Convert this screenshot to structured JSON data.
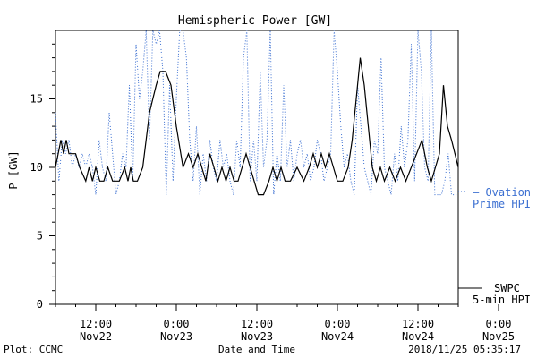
{
  "chart_data": {
    "type": "line",
    "title": "Hemispheric Power [GW]",
    "xlabel": "Date and Time",
    "ylabel": "P [GW]",
    "ylim": [
      0,
      20
    ],
    "yticks": [
      0,
      5,
      10,
      15
    ],
    "xlim_hours": [
      0,
      60
    ],
    "xlim_label": [
      "2018-11-22 06:00",
      "2018-11-25 12:00"
    ],
    "x_ticks": [
      {
        "label_top": "12:00",
        "label_bottom": "Nov22"
      },
      {
        "label_top": "0:00",
        "label_bottom": "Nov23"
      },
      {
        "label_top": "12:00",
        "label_bottom": "Nov23"
      },
      {
        "label_top": "0:00",
        "label_bottom": "Nov24"
      },
      {
        "label_top": "12:00",
        "label_bottom": "Nov24"
      },
      {
        "label_top": "0:00",
        "label_bottom": "Nov25"
      }
    ],
    "series": [
      {
        "name": "SWPC 5-min HPI",
        "legend_lines": [
          "SWPC",
          "5-min HPI"
        ],
        "color": "#000000",
        "style": "solid",
        "x_hours": [
          0,
          0.8,
          1.2,
          1.6,
          2.0,
          2.4,
          3.0,
          3.6,
          4.5,
          5.0,
          5.5,
          6.0,
          6.6,
          7.2,
          7.8,
          8.5,
          9.5,
          10.3,
          10.8,
          11.2,
          11.6,
          12.2,
          13.0,
          14.0,
          15.0,
          15.6,
          16.4,
          17.2,
          18.0,
          19.0,
          19.8,
          20.5,
          21.2,
          21.8,
          22.4,
          23.0,
          23.6,
          24.2,
          24.8,
          25.4,
          26.0,
          26.6,
          27.2,
          27.8,
          28.4,
          29.0,
          29.6,
          30.2,
          31.0,
          31.8,
          32.4,
          33.0,
          33.6,
          34.2,
          35.0,
          36.0,
          37.0,
          37.8,
          38.4,
          39.0,
          39.6,
          40.2,
          40.8,
          41.4,
          42.0,
          42.8,
          43.6,
          44.2,
          44.8,
          45.4,
          46.0,
          46.6,
          47.2,
          47.8,
          48.4,
          49.0,
          49.8,
          50.6,
          51.4,
          52.2,
          53.0,
          53.8,
          54.6,
          55.4,
          56.0,
          56.6,
          57.2,
          57.8,
          58.4,
          59.0,
          59.5,
          60.0
        ],
        "y": [
          10,
          12,
          11,
          12,
          11,
          11,
          11,
          10,
          9,
          10,
          9,
          10,
          9,
          9,
          10,
          9,
          9,
          10,
          9,
          10,
          9,
          9,
          10,
          14,
          16,
          17,
          17,
          16,
          13,
          10,
          11,
          10,
          11,
          10,
          9,
          11,
          10,
          9,
          10,
          9,
          10,
          9,
          9,
          10,
          11,
          10,
          9,
          8,
          8,
          9,
          10,
          9,
          10,
          9,
          9,
          10,
          9,
          10,
          11,
          10,
          11,
          10,
          11,
          10,
          9,
          9,
          10,
          12,
          15,
          18,
          16,
          13,
          10,
          9,
          10,
          9,
          10,
          9,
          10,
          9,
          10,
          11,
          12,
          10,
          9,
          10,
          11,
          16,
          13,
          12,
          11,
          10
        ]
      },
      {
        "name": "Ovation Prime HPI",
        "legend_lines": [
          "— Ovation",
          "Prime HPI"
        ],
        "color": "#3b6fd1",
        "style": "dotted",
        "x_hours": [
          0,
          0.5,
          1.0,
          1.5,
          2.0,
          2.5,
          3.0,
          3.5,
          4.0,
          4.5,
          5.0,
          5.5,
          6.0,
          6.5,
          7.0,
          7.5,
          8.0,
          8.5,
          9.0,
          9.5,
          10.0,
          10.5,
          11.0,
          11.5,
          12.0,
          12.5,
          13.0,
          13.5,
          14.0,
          14.5,
          15.0,
          15.5,
          16.0,
          16.5,
          17.0,
          17.5,
          18.0,
          18.5,
          19.0,
          19.5,
          20.0,
          20.5,
          21.0,
          21.5,
          22.0,
          22.5,
          23.0,
          23.5,
          24.0,
          24.5,
          25.0,
          25.5,
          26.0,
          26.5,
          27.0,
          27.5,
          28.0,
          28.5,
          29.0,
          29.5,
          30.0,
          30.5,
          31.0,
          31.5,
          32.0,
          32.5,
          33.0,
          33.5,
          34.0,
          34.5,
          35.0,
          35.5,
          36.0,
          36.5,
          37.0,
          37.5,
          38.0,
          38.5,
          39.0,
          39.5,
          40.0,
          40.5,
          41.0,
          41.5,
          42.0,
          42.5,
          43.0,
          43.5,
          44.0,
          44.5,
          45.0,
          45.5,
          46.0,
          46.5,
          47.0,
          47.5,
          48.0,
          48.5,
          49.0,
          49.5,
          50.0,
          50.5,
          51.0,
          51.5,
          52.0,
          52.5,
          53.0,
          53.5,
          54.0,
          54.5,
          55.0,
          55.5,
          56.0,
          56.5,
          57.0,
          57.5,
          58.0,
          58.5,
          59.0,
          59.5,
          60.0
        ],
        "y": [
          14,
          9,
          12,
          11,
          12,
          10,
          11,
          10,
          11,
          10,
          11,
          10,
          8,
          12,
          10,
          9,
          14,
          11,
          8,
          9,
          11,
          10,
          16,
          9,
          19,
          15,
          17,
          20,
          12,
          20,
          19,
          20,
          17,
          8,
          16,
          9,
          15,
          20,
          20,
          18,
          12,
          9,
          13,
          8,
          11,
          9,
          12,
          10,
          9,
          12,
          10,
          11,
          9,
          8,
          12,
          10,
          18,
          20,
          9,
          12,
          9,
          17,
          10,
          12,
          20,
          8,
          11,
          9,
          16,
          10,
          12,
          9,
          11,
          12,
          10,
          11,
          9,
          10,
          12,
          11,
          9,
          10,
          11,
          20,
          17,
          13,
          10,
          11,
          9,
          8,
          16,
          13,
          10,
          9,
          8,
          12,
          11,
          18,
          10,
          9,
          8,
          11,
          9,
          13,
          10,
          12,
          19,
          9,
          20,
          17,
          10,
          9,
          20,
          8,
          8,
          8,
          9,
          11,
          8,
          8,
          8
        ]
      }
    ]
  },
  "footer": {
    "plot_credit": "Plot: CCMC",
    "timestamp": "2018/11/25 05:35:17"
  }
}
